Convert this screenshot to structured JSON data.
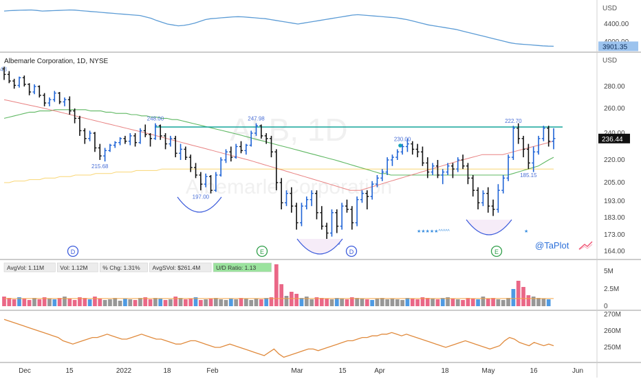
{
  "header": {
    "symbol_title": "Albemarle Corporation, 1D, NYSE",
    "currency": "USD",
    "index_currency": "USD",
    "watermark_ticker": "ALB, 1D",
    "watermark_name": "Albemarle Corporation",
    "brand": "@TaPlot",
    "top_left_cut_label": "48"
  },
  "colors": {
    "up_bar": "#1e63d6",
    "down_bar": "#111111",
    "index_line": "#5b9bd5",
    "resistance_line": "#12a39a",
    "ma_long": "#4caf50",
    "ma_mid": "#e57373",
    "ma_short": "#f4b400",
    "rs_line": "#e08a3c",
    "vol_red": "#e8577a",
    "vol_green": "#2e9e48",
    "vol_blue": "#3b8fe0",
    "vol_gray": "#8c8c8c",
    "price_tag": "#111111",
    "index_tag": "#9cc3ee",
    "base_arc": "#3b5bdb"
  },
  "index_panel": {
    "ticks": [
      "4400.00",
      "4000.00"
    ],
    "last_value": "3901.35",
    "values": [
      4690,
      4700,
      4705,
      4710,
      4712,
      4715,
      4705,
      4690,
      4695,
      4700,
      4705,
      4710,
      4715,
      4712,
      4700,
      4690,
      4680,
      4670,
      4660,
      4650,
      4640,
      4630,
      4620,
      4610,
      4600,
      4590,
      4560,
      4530,
      4480,
      4440,
      4400,
      4380,
      4360,
      4370,
      4390,
      4420,
      4460,
      4500,
      4520,
      4530,
      4540,
      4550,
      4560,
      4565,
      4560,
      4550,
      4540,
      4530,
      4520,
      4500,
      4480,
      4460,
      4440,
      4420,
      4400,
      4420,
      4440,
      4460,
      4480,
      4500,
      4520,
      4540,
      4560,
      4580,
      4600,
      4610,
      4600,
      4590,
      4580,
      4570,
      4560,
      4550,
      4540,
      4520,
      4500,
      4470,
      4440,
      4410,
      4380,
      4360,
      4340,
      4320,
      4300,
      4280,
      4250,
      4220,
      4190,
      4160,
      4130,
      4100,
      4070,
      4040,
      4010,
      3980,
      3960,
      3950,
      3940,
      3930,
      3920,
      3910,
      3905,
      3901
    ]
  },
  "price_panel": {
    "y_ticks": [
      "280.00",
      "260.00",
      "240.00",
      "220.00",
      "205.00",
      "193.00",
      "183.00",
      "173.00",
      "164.00"
    ],
    "last_price": "236.44",
    "pivot_labels": [
      "248.00",
      "247.98",
      "230.00",
      "222.70"
    ],
    "low_labels": [
      "215.68",
      "197.00",
      "169.93",
      "185.15"
    ],
    "event_markers": [
      "D",
      "E",
      "D",
      "E"
    ],
    "resistance_level": 245,
    "stars_row": "★★★★★^^^^^",
    "star_single": "★"
  },
  "chart_data": {
    "type": "bar",
    "title": "Albemarle Corporation, 1D, NYSE",
    "x_tick_labels": [
      "Dec",
      "15",
      "2022",
      "18",
      "Feb",
      "Mar",
      "15",
      "Apr",
      "18",
      "May",
      "16",
      "Jun"
    ],
    "ohlc": [
      [
        296,
        298,
        286,
        291
      ],
      [
        291,
        294,
        283,
        285
      ],
      [
        285,
        287,
        278,
        281
      ],
      [
        281,
        289,
        279,
        288
      ],
      [
        288,
        290,
        280,
        282
      ],
      [
        282,
        283,
        272,
        275
      ],
      [
        275,
        282,
        273,
        280
      ],
      [
        280,
        281,
        270,
        272
      ],
      [
        272,
        274,
        262,
        265
      ],
      [
        265,
        270,
        262,
        268
      ],
      [
        268,
        276,
        266,
        274
      ],
      [
        274,
        275,
        264,
        266
      ],
      [
        266,
        270,
        262,
        268
      ],
      [
        268,
        271,
        255,
        258
      ],
      [
        258,
        260,
        248,
        252
      ],
      [
        252,
        254,
        238,
        242
      ],
      [
        242,
        244,
        232,
        236
      ],
      [
        236,
        242,
        234,
        240
      ],
      [
        240,
        241,
        226,
        229
      ],
      [
        229,
        232,
        220,
        223
      ],
      [
        223,
        229,
        219,
        227
      ],
      [
        227,
        232,
        226,
        231
      ],
      [
        231,
        234,
        229,
        233
      ],
      [
        233,
        237,
        231,
        236
      ],
      [
        236,
        238,
        232,
        234
      ],
      [
        234,
        240,
        231,
        238
      ],
      [
        238,
        240,
        230,
        233
      ],
      [
        233,
        244,
        232,
        242
      ],
      [
        242,
        247,
        237,
        239
      ],
      [
        239,
        240,
        230,
        236
      ],
      [
        236,
        248,
        235,
        246
      ],
      [
        246,
        247,
        235,
        238
      ],
      [
        238,
        240,
        228,
        232
      ],
      [
        232,
        238,
        230,
        236
      ],
      [
        236,
        238,
        222,
        225
      ],
      [
        225,
        232,
        220,
        228
      ],
      [
        228,
        230,
        220,
        222
      ],
      [
        222,
        224,
        212,
        215
      ],
      [
        215,
        218,
        208,
        210
      ],
      [
        210,
        212,
        200,
        204
      ],
      [
        204,
        211,
        202,
        209
      ],
      [
        209,
        210,
        198,
        200
      ],
      [
        200,
        212,
        199,
        210
      ],
      [
        210,
        222,
        209,
        220
      ],
      [
        220,
        228,
        218,
        226
      ],
      [
        226,
        230,
        219,
        222
      ],
      [
        222,
        232,
        221,
        230
      ],
      [
        230,
        234,
        225,
        227
      ],
      [
        227,
        232,
        224,
        231
      ],
      [
        231,
        242,
        230,
        240
      ],
      [
        240,
        248,
        238,
        246
      ],
      [
        246,
        247,
        236,
        238
      ],
      [
        238,
        240,
        232,
        236
      ],
      [
        236,
        238,
        222,
        226
      ],
      [
        226,
        228,
        200,
        205
      ],
      [
        205,
        208,
        188,
        192
      ],
      [
        192,
        200,
        190,
        198
      ],
      [
        198,
        202,
        186,
        190
      ],
      [
        190,
        192,
        176,
        180
      ],
      [
        180,
        192,
        178,
        190
      ],
      [
        190,
        196,
        188,
        194
      ],
      [
        194,
        200,
        190,
        198
      ],
      [
        198,
        200,
        182,
        186
      ],
      [
        186,
        190,
        176,
        178
      ],
      [
        178,
        180,
        170,
        174
      ],
      [
        174,
        188,
        172,
        186
      ],
      [
        186,
        188,
        174,
        178
      ],
      [
        178,
        192,
        176,
        190
      ],
      [
        190,
        194,
        186,
        188
      ],
      [
        188,
        190,
        176,
        180
      ],
      [
        180,
        196,
        178,
        194
      ],
      [
        194,
        200,
        192,
        198
      ],
      [
        198,
        200,
        188,
        196
      ],
      [
        196,
        206,
        194,
        204
      ],
      [
        204,
        210,
        202,
        208
      ],
      [
        208,
        214,
        206,
        212
      ],
      [
        212,
        222,
        210,
        220
      ],
      [
        220,
        224,
        216,
        222
      ],
      [
        222,
        228,
        220,
        226
      ],
      [
        226,
        232,
        224,
        230
      ],
      [
        230,
        236,
        226,
        232
      ],
      [
        232,
        234,
        224,
        228
      ],
      [
        228,
        232,
        222,
        226
      ],
      [
        226,
        230,
        216,
        218
      ],
      [
        218,
        222,
        208,
        212
      ],
      [
        212,
        218,
        210,
        216
      ],
      [
        216,
        220,
        208,
        210
      ],
      [
        210,
        214,
        204,
        212
      ],
      [
        212,
        218,
        210,
        216
      ],
      [
        216,
        218,
        208,
        214
      ],
      [
        214,
        222,
        212,
        220
      ],
      [
        220,
        224,
        214,
        216
      ],
      [
        216,
        218,
        204,
        208
      ],
      [
        208,
        210,
        196,
        200
      ],
      [
        200,
        202,
        188,
        192
      ],
      [
        192,
        200,
        190,
        198
      ],
      [
        198,
        202,
        186,
        190
      ],
      [
        190,
        194,
        184,
        188
      ],
      [
        188,
        204,
        186,
        200
      ],
      [
        200,
        210,
        198,
        208
      ],
      [
        208,
        224,
        206,
        222
      ],
      [
        222,
        246,
        220,
        244
      ],
      [
        244,
        248,
        232,
        236
      ],
      [
        236,
        238,
        222,
        228
      ],
      [
        228,
        232,
        214,
        218
      ],
      [
        218,
        230,
        212,
        226
      ],
      [
        226,
        238,
        224,
        236
      ],
      [
        236,
        246,
        234,
        244
      ],
      [
        244,
        246,
        230,
        234
      ],
      [
        234,
        244,
        228,
        236
      ]
    ],
    "series": [
      {
        "name": "",
        "values": [
          252,
          253,
          254,
          255,
          256,
          257,
          257,
          258,
          258,
          258,
          259,
          259,
          259,
          259,
          259,
          259,
          259,
          258,
          258,
          258,
          257,
          257,
          256,
          256,
          256,
          255,
          255,
          254,
          254,
          253,
          253,
          252,
          252,
          251,
          251,
          250,
          249,
          248,
          247,
          246,
          245,
          244,
          243,
          242,
          241,
          240,
          239,
          238,
          237,
          236,
          235,
          234,
          233,
          232,
          231,
          230,
          229,
          228,
          227,
          226,
          225,
          224,
          223,
          222,
          221,
          220,
          219,
          218,
          217,
          216,
          215,
          214,
          213,
          212,
          211,
          211,
          210,
          210,
          210,
          210,
          210,
          210,
          210,
          210,
          210,
          210,
          210,
          210,
          210,
          210,
          210,
          210,
          210,
          210,
          210,
          210,
          210,
          210,
          210,
          210,
          211,
          212,
          213,
          214,
          215,
          216,
          218,
          220,
          222
        ]
      },
      {
        "name": "",
        "values": [
          268,
          267,
          266,
          265,
          264,
          263,
          262,
          261,
          260,
          259,
          258,
          257,
          256,
          255,
          254,
          253,
          252,
          251,
          250,
          249,
          248,
          247,
          246,
          245,
          244,
          243,
          242,
          241,
          240,
          239,
          238,
          237,
          236,
          235,
          234,
          233,
          232,
          231,
          230,
          229,
          228,
          227,
          226,
          225,
          224,
          223,
          222,
          221,
          220,
          219,
          218,
          217,
          216,
          215,
          214,
          213,
          212,
          211,
          210,
          209,
          208,
          207,
          206,
          205,
          204,
          203,
          202,
          201,
          200,
          200,
          200,
          201,
          202,
          203,
          204,
          205,
          206,
          207,
          208,
          209,
          210,
          211,
          212,
          213,
          214,
          215,
          216,
          217,
          218,
          219,
          220,
          221,
          222,
          223,
          224,
          224,
          224,
          224,
          224,
          225,
          226,
          227,
          228,
          229,
          230,
          231,
          232,
          233,
          234
        ]
      },
      {
        "name": "",
        "values": [
          205,
          205,
          206,
          206,
          206,
          207,
          207,
          207,
          208,
          208,
          208,
          209,
          209,
          209,
          210,
          210,
          210,
          210,
          211,
          211,
          211,
          211,
          212,
          212,
          212,
          212,
          213,
          213,
          213,
          213,
          213,
          214,
          214,
          214,
          214,
          214,
          214,
          214,
          214,
          214,
          214,
          214,
          214,
          214,
          214,
          214,
          214,
          214,
          214,
          214,
          214,
          214,
          214,
          214,
          214,
          214,
          214,
          214,
          214,
          214,
          214,
          214,
          214,
          214,
          214,
          214,
          214,
          214,
          214,
          214,
          214,
          214,
          214,
          214,
          214,
          214,
          214,
          214,
          214,
          214,
          214,
          214,
          214,
          214,
          214,
          214,
          214,
          214,
          214,
          214,
          214,
          214,
          214,
          214,
          214,
          214,
          214,
          214,
          214,
          214,
          214,
          214,
          214,
          214,
          214,
          214,
          214,
          214,
          214
        ]
      }
    ],
    "volume_panel": {
      "ticks": [
        "5M",
        "2.5M",
        "0"
      ],
      "stats": [
        "AvgVol: 1.11M",
        "Vol: 1.12M",
        "% Chg: 1.31%",
        "AvgSVol: $261.4M",
        "U/D Ratio: 1.13"
      ],
      "values": [
        1.4,
        1.2,
        1.0,
        1.3,
        1.1,
        0.9,
        1.2,
        1.0,
        1.3,
        1.1,
        1.0,
        1.2,
        1.4,
        1.1,
        0.9,
        1.3,
        1.2,
        1.0,
        1.4,
        1.1,
        0.9,
        1.0,
        1.2,
        0.8,
        1.1,
        1.0,
        0.9,
        1.2,
        1.3,
        1.0,
        1.2,
        1.1,
        0.9,
        1.0,
        1.4,
        1.2,
        1.0,
        1.1,
        1.3,
        0.9,
        1.0,
        1.1,
        1.2,
        1.0,
        0.9,
        1.1,
        1.0,
        1.2,
        1.1,
        0.9,
        1.1,
        1.0,
        1.2,
        1.3,
        6.1,
        3.2,
        1.5,
        2.1,
        1.8,
        1.2,
        1.4,
        1.0,
        1.3,
        1.2,
        1.1,
        1.0,
        1.2,
        1.1,
        1.0,
        1.3,
        1.2,
        1.1,
        1.0,
        0.9,
        1.1,
        1.2,
        1.0,
        1.1,
        1.0,
        0.9,
        1.2,
        1.1,
        1.0,
        1.3,
        1.2,
        1.1,
        1.0,
        1.2,
        1.3,
        1.1,
        1.0,
        0.9,
        1.2,
        1.1,
        1.0,
        1.4,
        1.1,
        1.2,
        1.0,
        0.9,
        1.2,
        2.5,
        3.7,
        2.8,
        1.6,
        1.4,
        1.2,
        1.1,
        1.0
      ]
    },
    "rs_panel": {
      "ticks": [
        "270M",
        "260M",
        "250M"
      ],
      "values": [
        267,
        266,
        265,
        264,
        263,
        262,
        261,
        260,
        259,
        258,
        257,
        256,
        254,
        253,
        252,
        253,
        254,
        255,
        256,
        256,
        257,
        258,
        257,
        256,
        255,
        255,
        256,
        257,
        258,
        257,
        256,
        255,
        255,
        254,
        253,
        252,
        252,
        253,
        254,
        254,
        253,
        252,
        251,
        250,
        250,
        251,
        252,
        251,
        250,
        249,
        248,
        247,
        246,
        245,
        247,
        249,
        246,
        244,
        245,
        246,
        247,
        248,
        249,
        249,
        248,
        249,
        250,
        251,
        252,
        253,
        254,
        254,
        255,
        256,
        256,
        257,
        257,
        258,
        258,
        259,
        258,
        257,
        258,
        257,
        256,
        255,
        254,
        253,
        252,
        251,
        250,
        251,
        252,
        253,
        254,
        253,
        252,
        251,
        250,
        249,
        250,
        251,
        254,
        256,
        255,
        253,
        252,
        251,
        253,
        252,
        251,
        252,
        251
      ]
    }
  }
}
